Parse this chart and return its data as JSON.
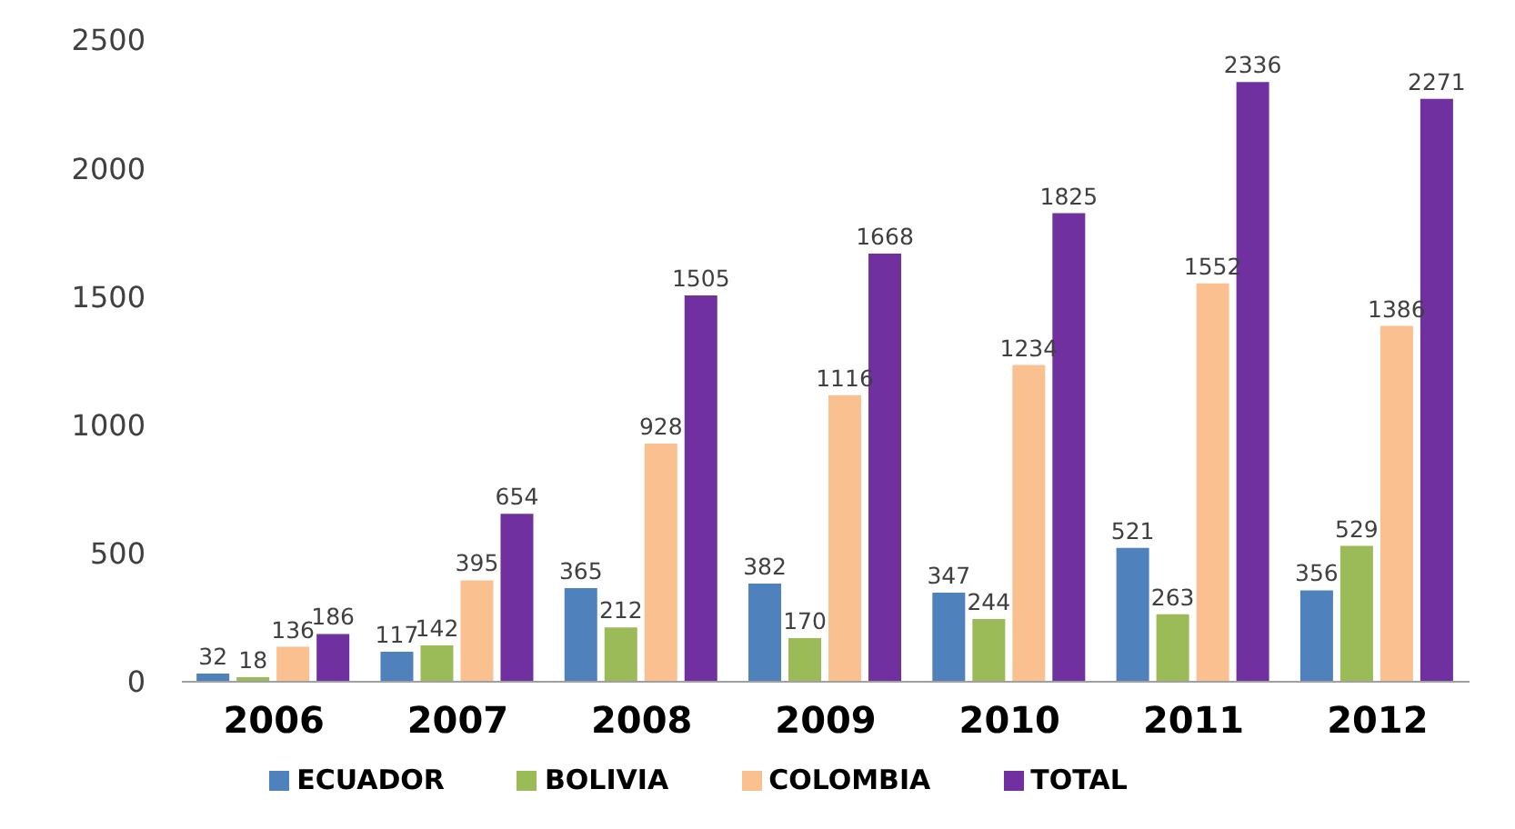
{
  "chart_data": {
    "type": "bar",
    "categories": [
      "2006",
      "2007",
      "2008",
      "2009",
      "2010",
      "2011",
      "2012"
    ],
    "series": [
      {
        "name": "ECUADOR",
        "color": "#4f81bd",
        "values": [
          32,
          117,
          365,
          382,
          347,
          521,
          356
        ]
      },
      {
        "name": "BOLIVIA",
        "color": "#9bbb59",
        "values": [
          18,
          142,
          212,
          170,
          244,
          263,
          529
        ]
      },
      {
        "name": "COLOMBIA",
        "color": "#fac090",
        "values": [
          136,
          395,
          928,
          1116,
          1234,
          1552,
          1386
        ]
      },
      {
        "name": "TOTAL",
        "color": "#7030a0",
        "values": [
          186,
          654,
          1505,
          1668,
          1825,
          2336,
          2271
        ]
      }
    ],
    "ylim": [
      0,
      2500
    ],
    "yticks": [
      0,
      500,
      1000,
      1500,
      2000,
      2500
    ],
    "legend": "bottom",
    "data_labels": true
  }
}
